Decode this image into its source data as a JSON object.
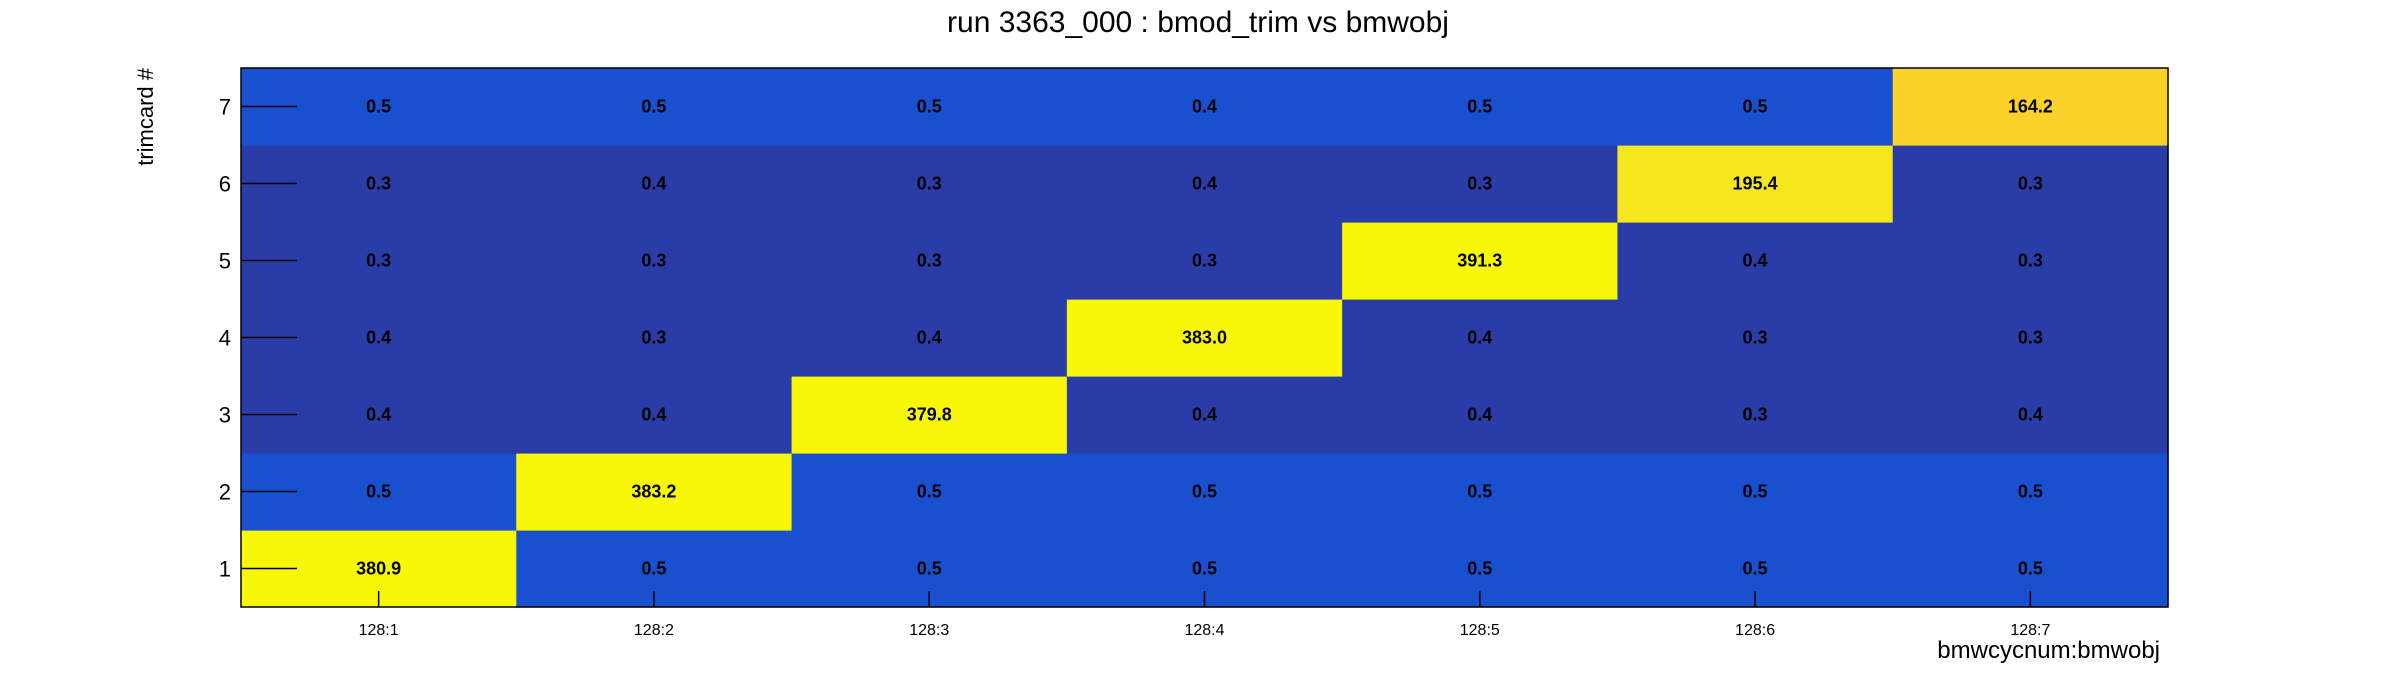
{
  "chart_data": {
    "type": "heatmap",
    "title": "run 3363_000 : bmod_trim vs bmwobj",
    "xlabel": "bmwcycnum:bmwobj",
    "ylabel": "trimcard #",
    "x_categories": [
      "128:1",
      "128:2",
      "128:3",
      "128:4",
      "128:5",
      "128:6",
      "128:7"
    ],
    "y_categories": [
      "1",
      "2",
      "3",
      "4",
      "5",
      "6",
      "7"
    ],
    "values": [
      [
        380.9,
        0.5,
        0.5,
        0.5,
        0.5,
        0.5,
        0.5
      ],
      [
        0.5,
        383.2,
        0.5,
        0.5,
        0.5,
        0.5,
        0.5
      ],
      [
        0.4,
        0.4,
        379.8,
        0.4,
        0.4,
        0.3,
        0.4
      ],
      [
        0.4,
        0.3,
        0.4,
        383.0,
        0.4,
        0.3,
        0.3
      ],
      [
        0.3,
        0.3,
        0.3,
        0.3,
        391.3,
        0.4,
        0.3
      ],
      [
        0.3,
        0.4,
        0.3,
        0.4,
        0.3,
        195.4,
        0.3
      ],
      [
        0.5,
        0.5,
        0.5,
        0.4,
        0.5,
        0.5,
        164.2
      ]
    ],
    "value_labels": [
      [
        "380.9",
        "0.5",
        "0.5",
        "0.5",
        "0.5",
        "0.5",
        "0.5"
      ],
      [
        "0.5",
        "383.2",
        "0.5",
        "0.5",
        "0.5",
        "0.5",
        "0.5"
      ],
      [
        "0.4",
        "0.4",
        "379.8",
        "0.4",
        "0.4",
        "0.3",
        "0.4"
      ],
      [
        "0.4",
        "0.3",
        "0.4",
        "383.0",
        "0.4",
        "0.3",
        "0.3"
      ],
      [
        "0.3",
        "0.3",
        "0.3",
        "0.3",
        "391.3",
        "0.4",
        "0.3"
      ],
      [
        "0.3",
        "0.4",
        "0.3",
        "0.4",
        "0.3",
        "195.4",
        "0.3"
      ],
      [
        "0.5",
        "0.5",
        "0.5",
        "0.4",
        "0.5",
        "0.5",
        "164.2"
      ]
    ],
    "colorscale": {
      "high_peak": "#f8f806",
      "high_mid": "#f6e61c",
      "high_low": "#fbd22a",
      "low_value_row": "#1950d0",
      "lower_value_row": "#2a3ca8"
    },
    "grid": false,
    "legend": "none"
  }
}
